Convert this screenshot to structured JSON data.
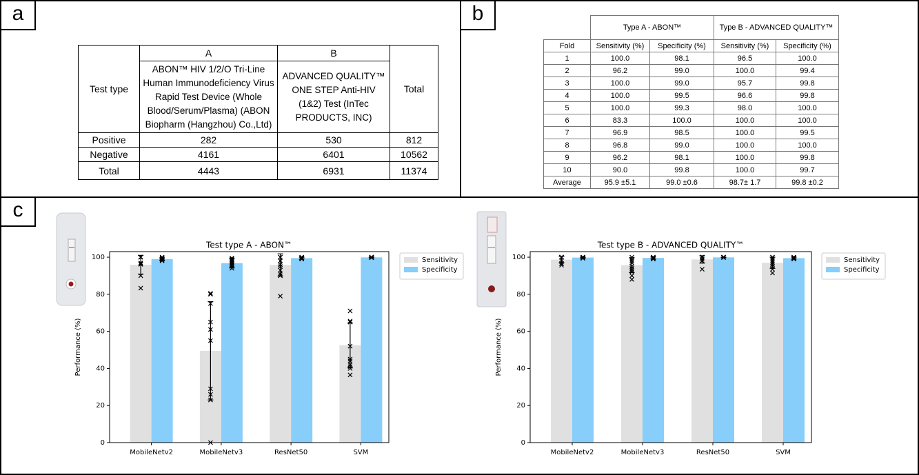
{
  "panel_a": {
    "label": "a",
    "table": {
      "row_header": "Test type",
      "columns": [
        "A",
        "B"
      ],
      "descriptions": [
        "ABON™ HIV 1/2/O Tri-Line Human Immunodeficiency Virus Rapid Test Device (Whole Blood/Serum/Plasma) (ABON Biopharm (Hangzhou) Co.,Ltd)",
        "ADVANCED QUALITY™ ONE STEP Anti-HIV (1&2) Test (InTec PRODUCTS, INC)"
      ],
      "total_header": "Total",
      "rows": [
        {
          "name": "Positive",
          "values": [
            282,
            530,
            812
          ]
        },
        {
          "name": "Negative",
          "values": [
            4161,
            6401,
            10562
          ]
        },
        {
          "name": "Total",
          "values": [
            4443,
            6931,
            11374
          ]
        }
      ]
    }
  },
  "panel_b": {
    "label": "b",
    "table": {
      "groups": [
        "Type A - ABON™",
        "Type B - ADVANCED QUALITY™"
      ],
      "columns": [
        "Fold",
        "Sensitivity (%)",
        "Specificity (%)",
        "Sensitivity (%)",
        "Specificity (%)"
      ],
      "rows": [
        [
          "1",
          "100.0",
          "98.1",
          "96.5",
          "100.0"
        ],
        [
          "2",
          "96.2",
          "99.0",
          "100.0",
          "99.4"
        ],
        [
          "3",
          "100.0",
          "99.0",
          "95.7",
          "99.8"
        ],
        [
          "4",
          "100.0",
          "99.5",
          "96.6",
          "99.8"
        ],
        [
          "5",
          "100.0",
          "99.3",
          "98.0",
          "100.0"
        ],
        [
          "6",
          "83.3",
          "100.0",
          "100.0",
          "100.0"
        ],
        [
          "7",
          "96.9",
          "98.5",
          "100.0",
          "99.5"
        ],
        [
          "8",
          "96.8",
          "99.0",
          "100.0",
          "100.0"
        ],
        [
          "9",
          "96.2",
          "98.1",
          "100.0",
          "99.8"
        ],
        [
          "10",
          "90.0",
          "99.8",
          "100.0",
          "99.7"
        ],
        [
          "Average",
          "95.9 ±5.1",
          "99.0 ±0.6",
          "98.7± 1.7",
          "99.8 ±0.2"
        ]
      ]
    }
  },
  "panel_c": {
    "label": "c"
  },
  "chart_data": [
    {
      "type": "bar",
      "title": "Test type A - ABON™",
      "ylabel": "Performance (%)",
      "categories": [
        "MobileNetv2",
        "MobileNetv3",
        "ResNet50",
        "SVM"
      ],
      "ylim": [
        0,
        103
      ],
      "yticks": [
        0,
        20,
        40,
        60,
        80,
        100
      ],
      "legend": "outside-right",
      "series": [
        {
          "name": "Sensitivity",
          "color": "#e0e0e0",
          "values": [
            95.9,
            49.5,
            95.8,
            52.5
          ],
          "errors": [
            5.1,
            26.5,
            6.0,
            12.0
          ],
          "points": [
            [
              100,
              96.2,
              100,
              100,
              100,
              83.3,
              96.9,
              96.8,
              96.2,
              90.0
            ],
            [
              80.5,
              80,
              75,
              65,
              61,
              55,
              29,
              26,
              23,
              0
            ],
            [
              100,
              100,
              98,
              96,
              95,
              93,
              91,
              90,
              79,
              98
            ],
            [
              71,
              65.5,
              65,
              52,
              45,
              42,
              41,
              40,
              36.5,
              44
            ]
          ]
        },
        {
          "name": "Specificity",
          "color": "#87cefa",
          "values": [
            99.0,
            96.8,
            99.5,
            99.9
          ],
          "errors": [
            0.6,
            2.5,
            0.5,
            0.2
          ],
          "points": [
            [
              98.1,
              99.0,
              99.0,
              99.5,
              99.3,
              100.0,
              98.5,
              99.0,
              98.1,
              99.8
            ],
            [
              99,
              98,
              97,
              96.5,
              96,
              95.5,
              95,
              94,
              98.5,
              99.5
            ],
            [
              99,
              99.5,
              100,
              99.8,
              99.2,
              99.6,
              99.4,
              99.9,
              99.1,
              99.7
            ],
            [
              100,
              99.8,
              99.9,
              100,
              99.7,
              100,
              99.9,
              100,
              99.8,
              100
            ]
          ]
        }
      ]
    },
    {
      "type": "bar",
      "title": "Test type B - ADVANCED QUALITY™",
      "ylabel": "Performance (%)",
      "categories": [
        "MobileNetv2",
        "MobileNetv3",
        "ResNet50",
        "SVM"
      ],
      "ylim": [
        0,
        103
      ],
      "yticks": [
        0,
        20,
        40,
        60,
        80,
        100
      ],
      "legend": "outside-right",
      "series": [
        {
          "name": "Sensitivity",
          "color": "#e0e0e0",
          "values": [
            98.7,
            95.7,
            98.8,
            97.0
          ],
          "errors": [
            1.7,
            4.0,
            2.0,
            3.0
          ],
          "points": [
            [
              96.5,
              100.0,
              95.7,
              96.6,
              98.0,
              100.0,
              100.0,
              100.0,
              100.0,
              100.0
            ],
            [
              100,
              99,
              98,
              97,
              95,
              94,
              93,
              92,
              90,
              88
            ],
            [
              100,
              100,
              100,
              99,
              98,
              98,
              100,
              100,
              93.5,
              100
            ],
            [
              100,
              99,
              98,
              97,
              96,
              95,
              99,
              100,
              93.5,
              91.5
            ]
          ]
        },
        {
          "name": "Specificity",
          "color": "#87cefa",
          "values": [
            99.8,
            99.6,
            99.9,
            99.5
          ],
          "errors": [
            0.2,
            0.5,
            0.1,
            0.5
          ],
          "points": [
            [
              100.0,
              99.4,
              99.8,
              99.8,
              100.0,
              100.0,
              99.5,
              100.0,
              99.8,
              99.7
            ],
            [
              100,
              99.5,
              99,
              99.8,
              99.2,
              99.6,
              100,
              99.1,
              99.9,
              99.7
            ],
            [
              100,
              99.9,
              100,
              99.8,
              100,
              99.9,
              100,
              100,
              99.8,
              100
            ],
            [
              100,
              99.5,
              99,
              99.8,
              99.2,
              100,
              99.4,
              99.9,
              99.1,
              99.6
            ]
          ]
        }
      ]
    }
  ]
}
